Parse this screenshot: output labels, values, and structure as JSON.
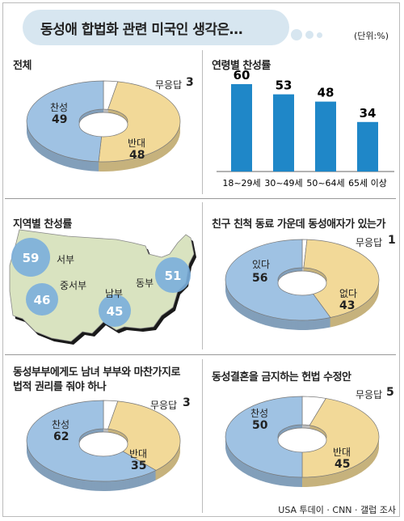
{
  "title": "동성애 합법화 관련 미국인 생각은…",
  "unit": "(단위:%)",
  "source": "USA 투데이 · CNN · 갤럽 조사",
  "colors": {
    "favor": "#9fc2e3",
    "oppose": "#f2d998",
    "noanswer": "#ffffff",
    "bar": "#1f87c8",
    "map": "#d9e3c0",
    "region": "#7aaedb"
  },
  "chart_data": [
    {
      "type": "pie",
      "title": "전체",
      "slices": [
        {
          "label": "찬성",
          "value": 49
        },
        {
          "label": "반대",
          "value": 48
        },
        {
          "label": "무응답",
          "value": 3
        }
      ]
    },
    {
      "type": "bar",
      "title": "연령별 찬성률",
      "categories": [
        "18~29세",
        "30~49세",
        "50~64세",
        "65세 이상"
      ],
      "values": [
        60,
        53,
        48,
        34
      ]
    },
    {
      "type": "map",
      "title": "지역별 찬성률",
      "regions": [
        {
          "name": "서부",
          "value": 59
        },
        {
          "name": "중서부",
          "value": 46
        },
        {
          "name": "남부",
          "value": 45
        },
        {
          "name": "동부",
          "value": 51
        }
      ]
    },
    {
      "type": "pie",
      "title": "친구 친척 동료 가운데 동성애자가 있는가",
      "slices": [
        {
          "label": "있다",
          "value": 56
        },
        {
          "label": "없다",
          "value": 43
        },
        {
          "label": "무응답",
          "value": 1
        }
      ]
    },
    {
      "type": "pie",
      "title": "동성부부에게도 남녀 부부와 마찬가지로 법적 권리를 줘야 하나",
      "title_lines": [
        "동성부부에게도 남녀 부부와 마찬가지로",
        "법적 권리를 줘야 하나"
      ],
      "slices": [
        {
          "label": "찬성",
          "value": 62
        },
        {
          "label": "반대",
          "value": 35
        },
        {
          "label": "무응답",
          "value": 3
        }
      ]
    },
    {
      "type": "pie",
      "title": "동성결혼을 금지하는 헌법 수정안",
      "slices": [
        {
          "label": "찬성",
          "value": 50
        },
        {
          "label": "반대",
          "value": 45
        },
        {
          "label": "무응답",
          "value": 5
        }
      ]
    }
  ]
}
